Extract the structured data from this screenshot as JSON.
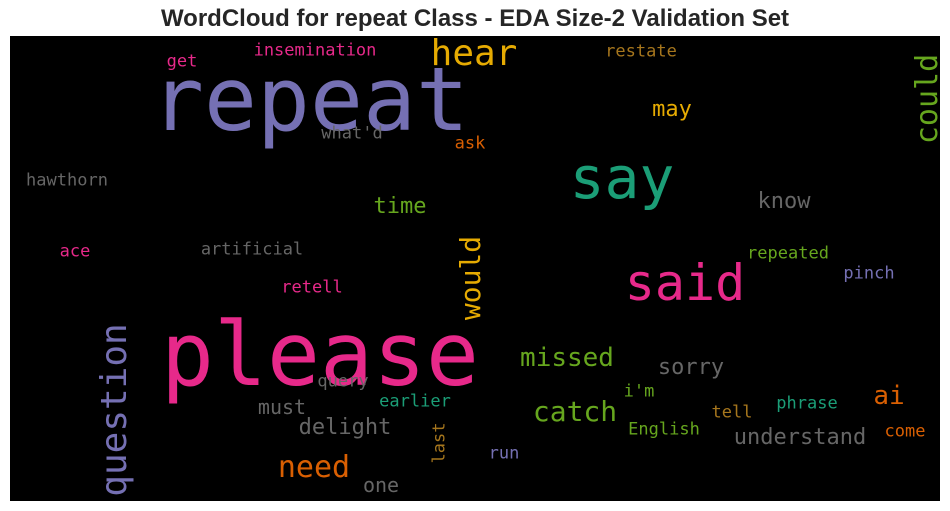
{
  "chart_data": {
    "type": "wordcloud",
    "title": "WordCloud for repeat Class - EDA Size-2 Validation Set",
    "background": "#000000",
    "words": [
      {
        "text": "repeat",
        "color": "#7570b3",
        "weight": 88,
        "rotated": false
      },
      {
        "text": "please",
        "color": "#e7298a",
        "weight": 88,
        "rotated": false
      },
      {
        "text": "say",
        "color": "#1b9e77",
        "weight": 58,
        "rotated": false
      },
      {
        "text": "said",
        "color": "#e7298a",
        "weight": 50,
        "rotated": false
      },
      {
        "text": "hear",
        "color": "#e6ab02",
        "weight": 36,
        "rotated": false
      },
      {
        "text": "question",
        "color": "#7570b3",
        "weight": 36,
        "rotated": true
      },
      {
        "text": "could",
        "color": "#66a61e",
        "weight": 30,
        "rotated": true
      },
      {
        "text": "need",
        "color": "#d95f02",
        "weight": 30,
        "rotated": false
      },
      {
        "text": "would",
        "color": "#e6ab02",
        "weight": 28,
        "rotated": true
      },
      {
        "text": "catch",
        "color": "#66a61e",
        "weight": 28,
        "rotated": false
      },
      {
        "text": "missed",
        "color": "#66a61e",
        "weight": 26,
        "rotated": false
      },
      {
        "text": "ai",
        "color": "#d95f02",
        "weight": 26,
        "rotated": false
      },
      {
        "text": "may",
        "color": "#e6ab02",
        "weight": 22,
        "rotated": false
      },
      {
        "text": "time",
        "color": "#66a61e",
        "weight": 22,
        "rotated": false
      },
      {
        "text": "know",
        "color": "#666666",
        "weight": 22,
        "rotated": false
      },
      {
        "text": "sorry",
        "color": "#666666",
        "weight": 22,
        "rotated": false
      },
      {
        "text": "delight",
        "color": "#666666",
        "weight": 22,
        "rotated": false
      },
      {
        "text": "must",
        "color": "#666666",
        "weight": 20,
        "rotated": false
      },
      {
        "text": "understand",
        "color": "#666666",
        "weight": 22,
        "rotated": false
      },
      {
        "text": "one",
        "color": "#666666",
        "weight": 20,
        "rotated": false
      },
      {
        "text": "insemination",
        "color": "#e7298a",
        "weight": 17,
        "rotated": false
      },
      {
        "text": "restate",
        "color": "#a6761d",
        "weight": 17,
        "rotated": false
      },
      {
        "text": "get",
        "color": "#e7298a",
        "weight": 17,
        "rotated": false
      },
      {
        "text": "what'd",
        "color": "#666666",
        "weight": 17,
        "rotated": false
      },
      {
        "text": "ask",
        "color": "#d95f02",
        "weight": 17,
        "rotated": false
      },
      {
        "text": "hawthorn",
        "color": "#666666",
        "weight": 17,
        "rotated": false
      },
      {
        "text": "artificial",
        "color": "#666666",
        "weight": 17,
        "rotated": false
      },
      {
        "text": "ace",
        "color": "#e7298a",
        "weight": 17,
        "rotated": false
      },
      {
        "text": "repeated",
        "color": "#66a61e",
        "weight": 17,
        "rotated": false
      },
      {
        "text": "pinch",
        "color": "#7570b3",
        "weight": 17,
        "rotated": false
      },
      {
        "text": "retell",
        "color": "#e7298a",
        "weight": 17,
        "rotated": false
      },
      {
        "text": "query",
        "color": "#666666",
        "weight": 17,
        "rotated": false
      },
      {
        "text": "earlier",
        "color": "#1b9e77",
        "weight": 17,
        "rotated": false
      },
      {
        "text": "i'm",
        "color": "#66a61e",
        "weight": 17,
        "rotated": false
      },
      {
        "text": "tell",
        "color": "#a6761d",
        "weight": 17,
        "rotated": false
      },
      {
        "text": "phrase",
        "color": "#1b9e77",
        "weight": 17,
        "rotated": false
      },
      {
        "text": "come",
        "color": "#d95f02",
        "weight": 17,
        "rotated": false
      },
      {
        "text": "English",
        "color": "#66a61e",
        "weight": 17,
        "rotated": false
      },
      {
        "text": "last",
        "color": "#a6761d",
        "weight": 17,
        "rotated": true
      },
      {
        "text": "run",
        "color": "#7570b3",
        "weight": 17,
        "rotated": false
      }
    ]
  }
}
